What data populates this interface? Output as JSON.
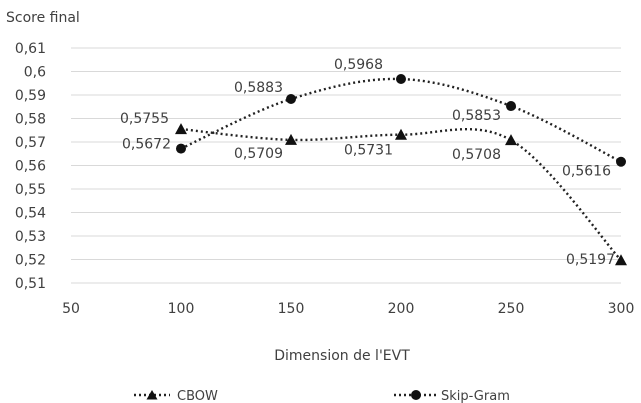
{
  "chart_data": {
    "type": "line",
    "title": "",
    "ylabel": "Score final",
    "xlabel": "Dimension de l'EVT",
    "xlim": [
      50,
      300
    ],
    "ylim": [
      0.51,
      0.61
    ],
    "x_ticks": [
      "50",
      "100",
      "150",
      "200",
      "250",
      "300"
    ],
    "y_ticks": [
      "0,51",
      "0,52",
      "0,53",
      "0,54",
      "0,55",
      "0,56",
      "0,57",
      "0,58",
      "0,59",
      "0,6",
      "0,61"
    ],
    "grid": "horizontal",
    "smoothed": true,
    "legend_position": "bottom",
    "series": [
      {
        "name": "CBOW",
        "marker": "triangle",
        "color": "#222222",
        "x": [
          100,
          150,
          200,
          250,
          300
        ],
        "y": [
          0.5755,
          0.5709,
          0.5731,
          0.5708,
          0.5197
        ],
        "labels": [
          "0,5755",
          "0,5709",
          "0,5731",
          "0,5708",
          "0,5197"
        ]
      },
      {
        "name": "Skip-Gram",
        "marker": "circle",
        "color": "#222222",
        "x": [
          100,
          150,
          200,
          250,
          300
        ],
        "y": [
          0.5672,
          0.5883,
          0.5968,
          0.5853,
          0.5616
        ],
        "labels": [
          "0,5672",
          "0,5883",
          "0,5968",
          "0,5853",
          "0,5616"
        ]
      }
    ]
  }
}
